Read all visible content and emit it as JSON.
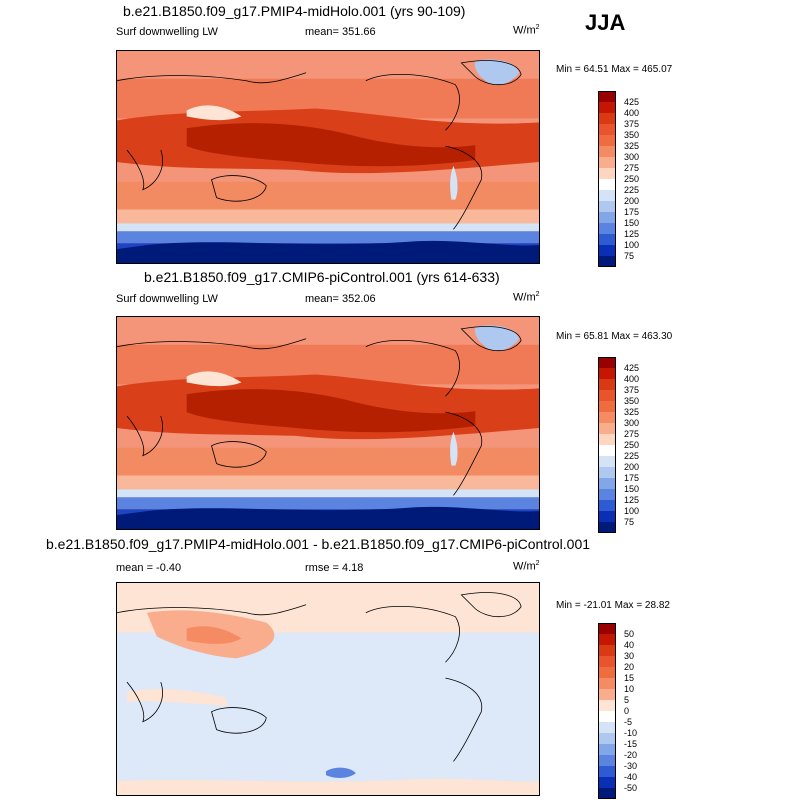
{
  "season": "JJA",
  "panels": [
    {
      "title": "b.e21.B1850.f09_g17.PMIP4-midHolo.001 (yrs 90-109)",
      "variable": "Surf downwelling LW",
      "mean_label": "mean= 351.66",
      "units": "W/m",
      "units_sup": "2",
      "minmax": "Min =  64.51 Max = 465.07",
      "cbar_labels": [
        "425",
        "400",
        "375",
        "350",
        "325",
        "300",
        "275",
        "250",
        "225",
        "200",
        "175",
        "150",
        "125",
        "100",
        "75"
      ],
      "cbar_colors": [
        "#990000",
        "#c41600",
        "#d93a14",
        "#e8542b",
        "#ef6c3f",
        "#f58b62",
        "#f9ad8c",
        "#fcd6c0",
        "#ffffff",
        "#d5e3f6",
        "#aec8f0",
        "#83a6e8",
        "#5a84df",
        "#2f5bd2",
        "#0b2fb4",
        "#001a7a"
      ]
    },
    {
      "title": "b.e21.B1850.f09_g17.CMIP6-piControl.001 (yrs 614-633)",
      "variable": "Surf downwelling LW",
      "mean_label": "mean= 352.06",
      "units": "W/m",
      "units_sup": "2",
      "minmax": "Min =  65.81 Max = 463.30",
      "cbar_labels": [
        "425",
        "400",
        "375",
        "350",
        "325",
        "300",
        "275",
        "250",
        "225",
        "200",
        "175",
        "150",
        "125",
        "100",
        "75"
      ],
      "cbar_colors": [
        "#990000",
        "#c41600",
        "#d93a14",
        "#e8542b",
        "#ef6c3f",
        "#f58b62",
        "#f9ad8c",
        "#fcd6c0",
        "#ffffff",
        "#d5e3f6",
        "#aec8f0",
        "#83a6e8",
        "#5a84df",
        "#2f5bd2",
        "#0b2fb4",
        "#001a7a"
      ]
    },
    {
      "title": "b.e21.B1850.f09_g17.PMIP4-midHolo.001 - b.e21.B1850.f09_g17.CMIP6-piControl.001",
      "variable": "mean =  -0.40",
      "mean_label": "rmse =   4.18",
      "units": "W/m",
      "units_sup": "2",
      "minmax": "Min = -21.01 Max =  28.82",
      "cbar_labels": [
        "50",
        "40",
        "30",
        "20",
        "15",
        "10",
        "5",
        "0",
        "-5",
        "-10",
        "-15",
        "-20",
        "-30",
        "-40",
        "-50"
      ],
      "cbar_colors": [
        "#990000",
        "#c41600",
        "#d93a14",
        "#e8542b",
        "#ef6c3f",
        "#f58b62",
        "#f9ad8c",
        "#fde4d4",
        "#ffffff",
        "#d5e3f6",
        "#aec8f0",
        "#83a6e8",
        "#5a84df",
        "#2f5bd2",
        "#0b2fb4",
        "#001a7a"
      ]
    }
  ]
}
